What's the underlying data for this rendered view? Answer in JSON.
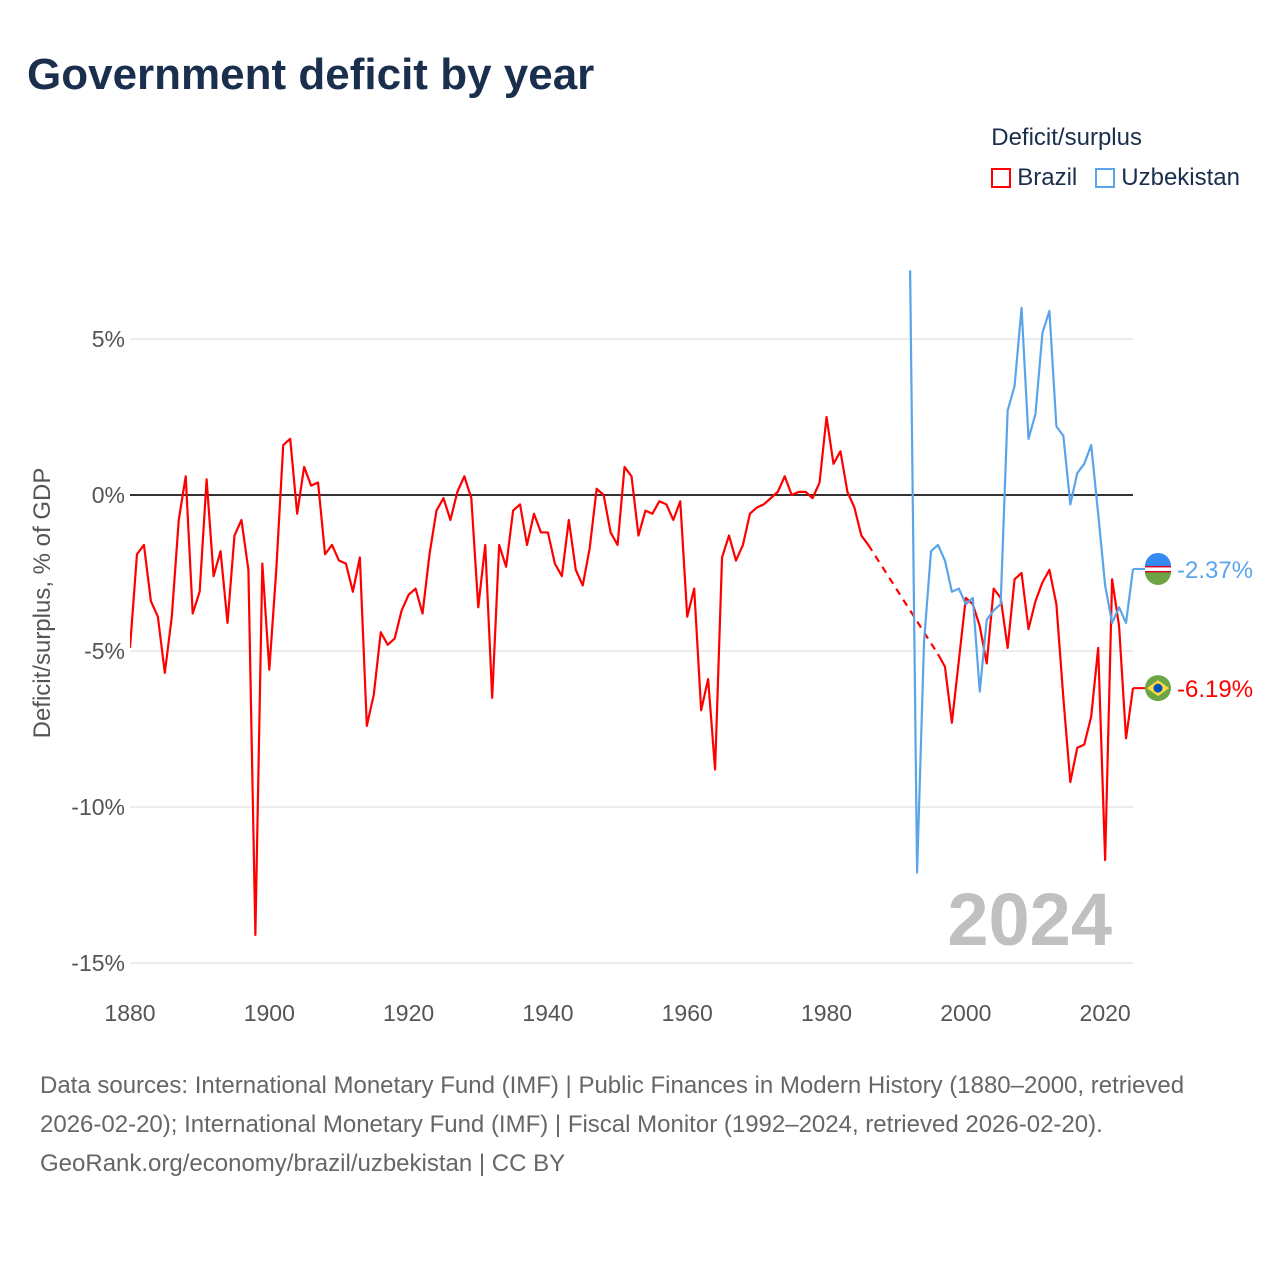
{
  "title": "Government deficit by year",
  "legend": {
    "title": "Deficit/surplus",
    "items": [
      {
        "label": "Brazil",
        "color": "#ff0000"
      },
      {
        "label": "Uzbekistan",
        "color": "#5aa5ea"
      }
    ]
  },
  "footer": {
    "sources": "Data sources: International Monetary Fund (IMF) | Public Finances in Modern History (1880–2000, retrieved 2026-02-20); International Monetary Fund (IMF) | Fiscal Monitor (1992–2024, retrieved 2026-02-20).",
    "credit": "GeoRank.org/economy/brazil/uzbekistan | CC BY"
  },
  "chart_data": {
    "type": "line",
    "title": "Government deficit by year",
    "ylabel": "Deficit/surplus, % of GDP",
    "xlabel": "",
    "xlim": [
      1880,
      2024
    ],
    "ylim": [
      -15,
      7
    ],
    "xticks": [
      1880,
      1900,
      1920,
      1940,
      1960,
      1980,
      2000,
      2020
    ],
    "xtick_labels": [
      "1880",
      "1900",
      "1920",
      "1940",
      "1960",
      "1980",
      "2000",
      "2020"
    ],
    "yticks": [
      5,
      0,
      -5,
      -10,
      -15
    ],
    "ytick_labels": [
      "5%",
      "0%",
      "-5%",
      "-10%",
      "-15%"
    ],
    "grid": true,
    "legend_position": "top-right",
    "year_watermark": "2024",
    "series": [
      {
        "name": "Brazil",
        "color": "#ff0000",
        "end_label": "-6.19%",
        "gap": [
          1986,
          1996
        ],
        "x": [
          1880,
          1881,
          1882,
          1883,
          1884,
          1885,
          1886,
          1887,
          1888,
          1889,
          1890,
          1891,
          1892,
          1893,
          1894,
          1895,
          1896,
          1897,
          1898,
          1899,
          1900,
          1901,
          1902,
          1903,
          1904,
          1905,
          1906,
          1907,
          1908,
          1909,
          1910,
          1911,
          1912,
          1913,
          1914,
          1915,
          1916,
          1917,
          1918,
          1919,
          1920,
          1921,
          1922,
          1923,
          1924,
          1925,
          1926,
          1927,
          1928,
          1929,
          1930,
          1931,
          1932,
          1933,
          1934,
          1935,
          1936,
          1937,
          1938,
          1939,
          1940,
          1941,
          1942,
          1943,
          1944,
          1945,
          1946,
          1947,
          1948,
          1949,
          1950,
          1951,
          1952,
          1953,
          1954,
          1955,
          1956,
          1957,
          1958,
          1959,
          1960,
          1961,
          1962,
          1963,
          1964,
          1965,
          1966,
          1967,
          1968,
          1969,
          1970,
          1971,
          1972,
          1973,
          1974,
          1975,
          1976,
          1977,
          1978,
          1979,
          1980,
          1981,
          1982,
          1983,
          1984,
          1985,
          1986,
          1996,
          1997,
          1998,
          1999,
          2000,
          2001,
          2002,
          2003,
          2004,
          2005,
          2006,
          2007,
          2008,
          2009,
          2010,
          2011,
          2012,
          2013,
          2014,
          2015,
          2016,
          2017,
          2018,
          2019,
          2020,
          2021,
          2022,
          2023,
          2024
        ],
        "y": [
          -4.9,
          -1.9,
          -1.6,
          -3.4,
          -3.9,
          -5.7,
          -3.9,
          -0.8,
          0.6,
          -3.8,
          -3.1,
          0.5,
          -2.6,
          -1.8,
          -4.1,
          -1.3,
          -0.8,
          -2.4,
          -14.1,
          -2.2,
          -5.6,
          -2.4,
          1.6,
          1.8,
          -0.6,
          0.9,
          0.3,
          0.4,
          -1.9,
          -1.6,
          -2.1,
          -2.2,
          -3.1,
          -2.0,
          -7.4,
          -6.4,
          -4.4,
          -4.8,
          -4.6,
          -3.7,
          -3.2,
          -3.0,
          -3.8,
          -1.9,
          -0.5,
          -0.1,
          -0.8,
          0.1,
          0.6,
          -0.1,
          -3.6,
          -1.6,
          -6.5,
          -1.6,
          -2.3,
          -0.5,
          -0.3,
          -1.6,
          -0.6,
          -1.2,
          -1.2,
          -2.2,
          -2.6,
          -0.8,
          -2.4,
          -2.9,
          -1.7,
          0.2,
          0.0,
          -1.2,
          -1.6,
          0.9,
          0.6,
          -1.3,
          -0.5,
          -0.6,
          -0.2,
          -0.3,
          -0.8,
          -0.2,
          -3.9,
          -3.0,
          -6.9,
          -5.9,
          -8.8,
          -2.0,
          -1.3,
          -2.1,
          -1.6,
          -0.6,
          -0.4,
          -0.3,
          -0.1,
          0.1,
          0.6,
          0.0,
          0.1,
          0.1,
          -0.1,
          0.4,
          2.5,
          1.0,
          1.4,
          0.1,
          -0.4,
          -1.3,
          -1.6,
          -5.1,
          -5.5,
          -7.3,
          -5.3,
          -3.3,
          -3.5,
          -4.2,
          -5.4,
          -3.0,
          -3.3,
          -4.9,
          -2.7,
          -2.5,
          -4.3,
          -3.4,
          -2.8,
          -2.4,
          -3.5,
          -6.5,
          -9.2,
          -8.1,
          -8.0,
          -7.1,
          -4.9,
          -11.7,
          -2.7,
          -4.2,
          -7.8,
          -6.19
        ]
      },
      {
        "name": "Uzbekistan",
        "color": "#5aa5ea",
        "end_label": "-2.37%",
        "x": [
          1992,
          1993,
          1994,
          1995,
          1996,
          1997,
          1998,
          1999,
          2000,
          2001,
          2002,
          2003,
          2004,
          2005,
          2006,
          2007,
          2008,
          2009,
          2010,
          2011,
          2012,
          2013,
          2014,
          2015,
          2016,
          2017,
          2018,
          2019,
          2020,
          2021,
          2022,
          2023,
          2024
        ],
        "y": [
          7.2,
          -12.1,
          -4.7,
          -1.8,
          -1.6,
          -2.1,
          -3.1,
          -3.0,
          -3.5,
          -3.3,
          -6.3,
          -4.0,
          -3.7,
          -3.5,
          2.7,
          3.5,
          6.0,
          1.8,
          2.6,
          5.2,
          5.9,
          2.2,
          1.9,
          -0.3,
          0.7,
          1.0,
          1.6,
          -0.6,
          -2.9,
          -4.1,
          -3.6,
          -4.1,
          -2.37
        ]
      }
    ]
  }
}
